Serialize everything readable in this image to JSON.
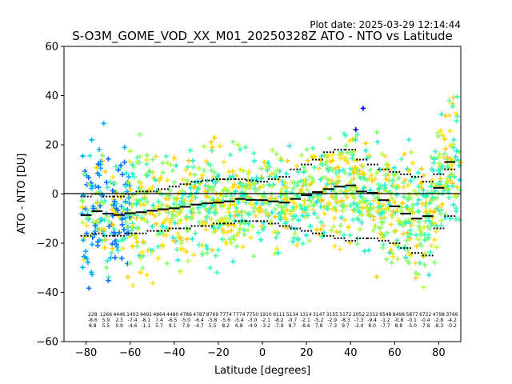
{
  "plot_date": "Plot date: 2025-03-29 12:14:44",
  "chart_data": {
    "type": "scatter",
    "title": "S-O3M_GOME_VOD_XX_M01_20250328Z ATO - NTO vs Latitude",
    "xlabel": "Latitude [degrees]",
    "ylabel": "ATO - NTO [DU]",
    "xlim": [
      -90,
      90
    ],
    "ylim": [
      -60,
      60
    ],
    "xticks": [
      -80,
      -60,
      -40,
      -20,
      0,
      20,
      40,
      60,
      80
    ],
    "yticks": [
      -60,
      -40,
      -20,
      0,
      20,
      40,
      60
    ],
    "grid": false,
    "reference_line_y": 0,
    "marker": "+",
    "colors": [
      "#0000ff",
      "#0070ff",
      "#00b0ff",
      "#20f0d0",
      "#40ffb0",
      "#80ff70",
      "#b0ff40",
      "#ffd000",
      "#ffe020"
    ],
    "bin_means": [
      {
        "lat": -80,
        "mean": -8.6
      },
      {
        "lat": -75,
        "mean": -7.0
      },
      {
        "lat": -70,
        "mean": -8.0
      },
      {
        "lat": -65,
        "mean": -8.5
      },
      {
        "lat": -60,
        "mean": -7.8
      },
      {
        "lat": -55,
        "mean": -7.4
      },
      {
        "lat": -50,
        "mean": -6.8
      },
      {
        "lat": -45,
        "mean": -6.2
      },
      {
        "lat": -40,
        "mean": -5.8
      },
      {
        "lat": -35,
        "mean": -5.2
      },
      {
        "lat": -30,
        "mean": -4.3
      },
      {
        "lat": -25,
        "mean": -3.8
      },
      {
        "lat": -20,
        "mean": -3.5
      },
      {
        "lat": -15,
        "mean": -3.0
      },
      {
        "lat": -10,
        "mean": -2.0
      },
      {
        "lat": -5,
        "mean": -2.4
      },
      {
        "lat": 0,
        "mean": -2.5
      },
      {
        "lat": 5,
        "mean": -3.0
      },
      {
        "lat": 10,
        "mean": -3.5
      },
      {
        "lat": 15,
        "mean": -2.0
      },
      {
        "lat": 20,
        "mean": -0.5
      },
      {
        "lat": 25,
        "mean": 0.8
      },
      {
        "lat": 30,
        "mean": 2.0
      },
      {
        "lat": 35,
        "mean": 3.0
      },
      {
        "lat": 40,
        "mean": 3.5
      },
      {
        "lat": 45,
        "mean": 1.0
      },
      {
        "lat": 50,
        "mean": 0.5
      },
      {
        "lat": 55,
        "mean": -2.5
      },
      {
        "lat": 60,
        "mean": -5.0
      },
      {
        "lat": 65,
        "mean": -8.0
      },
      {
        "lat": 70,
        "mean": -10.0
      },
      {
        "lat": 75,
        "mean": -9.0
      },
      {
        "lat": 80,
        "mean": 2.5
      },
      {
        "lat": 85,
        "mean": 13.0
      }
    ],
    "bin_upper": [
      {
        "lat": -80,
        "v": -1
      },
      {
        "lat": -75,
        "v": 0
      },
      {
        "lat": -70,
        "v": -1
      },
      {
        "lat": -65,
        "v": -1
      },
      {
        "lat": -60,
        "v": 0
      },
      {
        "lat": -55,
        "v": 1
      },
      {
        "lat": -50,
        "v": 1
      },
      {
        "lat": -45,
        "v": 2
      },
      {
        "lat": -40,
        "v": 3
      },
      {
        "lat": -35,
        "v": 4
      },
      {
        "lat": -30,
        "v": 5
      },
      {
        "lat": -25,
        "v": 5.5
      },
      {
        "lat": -20,
        "v": 6
      },
      {
        "lat": -15,
        "v": 6
      },
      {
        "lat": -10,
        "v": 6
      },
      {
        "lat": -5,
        "v": 5.5
      },
      {
        "lat": 0,
        "v": 5
      },
      {
        "lat": 5,
        "v": 6
      },
      {
        "lat": 10,
        "v": 7
      },
      {
        "lat": 15,
        "v": 10
      },
      {
        "lat": 20,
        "v": 12
      },
      {
        "lat": 25,
        "v": 14
      },
      {
        "lat": 30,
        "v": 17
      },
      {
        "lat": 35,
        "v": 18
      },
      {
        "lat": 40,
        "v": 18
      },
      {
        "lat": 45,
        "v": 14
      },
      {
        "lat": 50,
        "v": 12
      },
      {
        "lat": 55,
        "v": 10
      },
      {
        "lat": 60,
        "v": 9
      },
      {
        "lat": 65,
        "v": 8
      },
      {
        "lat": 70,
        "v": 7
      },
      {
        "lat": 75,
        "v": 5
      },
      {
        "lat": 80,
        "v": 8
      },
      {
        "lat": 85,
        "v": 10
      }
    ],
    "bin_lower": [
      {
        "lat": -80,
        "v": -17
      },
      {
        "lat": -75,
        "v": -16
      },
      {
        "lat": -70,
        "v": -17
      },
      {
        "lat": -65,
        "v": -17
      },
      {
        "lat": -60,
        "v": -16
      },
      {
        "lat": -55,
        "v": -16
      },
      {
        "lat": -50,
        "v": -15
      },
      {
        "lat": -45,
        "v": -15
      },
      {
        "lat": -40,
        "v": -14
      },
      {
        "lat": -35,
        "v": -14
      },
      {
        "lat": -30,
        "v": -13
      },
      {
        "lat": -25,
        "v": -13
      },
      {
        "lat": -20,
        "v": -12
      },
      {
        "lat": -15,
        "v": -12
      },
      {
        "lat": -10,
        "v": -11
      },
      {
        "lat": -5,
        "v": -11
      },
      {
        "lat": 0,
        "v": -11
      },
      {
        "lat": 5,
        "v": -12
      },
      {
        "lat": 10,
        "v": -13
      },
      {
        "lat": 15,
        "v": -14
      },
      {
        "lat": 20,
        "v": -15
      },
      {
        "lat": 25,
        "v": -16
      },
      {
        "lat": 30,
        "v": -17
      },
      {
        "lat": 35,
        "v": -18
      },
      {
        "lat": 40,
        "v": -19
      },
      {
        "lat": 45,
        "v": -18
      },
      {
        "lat": 50,
        "v": -18
      },
      {
        "lat": 55,
        "v": -19
      },
      {
        "lat": 60,
        "v": -20
      },
      {
        "lat": 65,
        "v": -22
      },
      {
        "lat": 70,
        "v": -24
      },
      {
        "lat": 75,
        "v": -25
      },
      {
        "lat": 80,
        "v": -14
      },
      {
        "lat": 85,
        "v": -9
      }
    ],
    "annotation_rows": [
      "228 1266 4446 1403 4491 4864 4480 4786 4787 8769 7774 7774 7750 1910 9111 5134 1314 3147 3155 5172 2052 2332 9548 8498 5877 6722 4798 3766",
      "-8.6 5.9 2.3 -7.4 -8.1 7.4 -6.5 -5.0 -6.4 -5.8 -5.6 -5.4 -3.0 -2.1 -8.2 -0.7 -2.1 -5.2 -2.9 -8.3 -7.3 -9.4 -1.2 -0.8 -0.1 -0.4 -2.8 -4.2",
      "8.8 5.5 0.9 -4.6 -1.1 5.7 9.1 7.9 -4.7 5.5 8.2 6.8 -4.9 -3.2 -7.9 8.7 -8.6 7.8 -7.3 9.7 -2.4 8.0 -7.7 8.8 -5.0 -7.8 -8.3 -0.2"
    ]
  }
}
